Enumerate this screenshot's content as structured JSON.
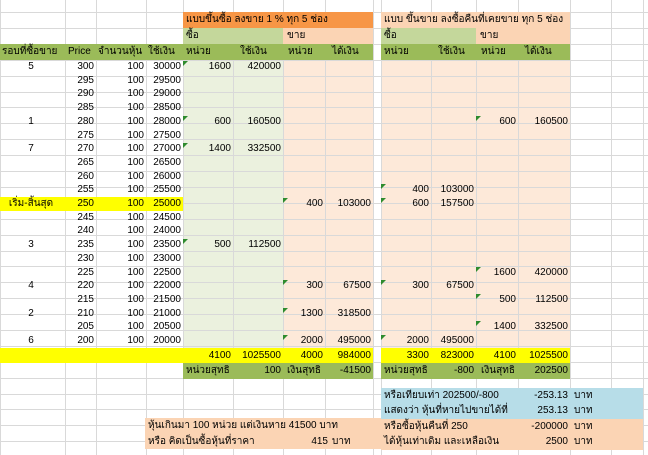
{
  "colors": {
    "orange": "#f79646",
    "peach": "#fbd4b4",
    "green_header": "#9bbb59",
    "light_green": "#ebf1de",
    "light_peach": "#fde9d9",
    "yellow": "#ffff00",
    "light_blue": "#b7dde8",
    "grid": "#d9d9d9"
  },
  "left_title": "แบบขึ้นซื้อ ลงขาย 1 % ทุก 5 ช่อง",
  "right_title": "แบบ ขึ้นขาย ลงซื้อคืนที่เคยขาย ทุก 5 ช่อง",
  "sub": {
    "buy": "ซื้อ",
    "sell": "ขาย"
  },
  "headers": {
    "round": "รอบที่ซื้อขาย",
    "price": "Price",
    "shares": "จำนวนหุ้น",
    "cost": "ใช้เงิน",
    "unit": "หน่วย",
    "spend": "ใช้เงิน",
    "get": "ได้เงิน"
  },
  "rows": [
    {
      "round": "5",
      "price": "300",
      "qty": "100",
      "cost": "30000",
      "lbu": "1600",
      "lbm": "420000",
      "lsu": "",
      "lsm": "",
      "rbu": "",
      "rbm": "",
      "rsu": "",
      "rsm": ""
    },
    {
      "round": "",
      "price": "295",
      "qty": "100",
      "cost": "29500",
      "lbu": "",
      "lbm": "",
      "lsu": "",
      "lsm": "",
      "rbu": "",
      "rbm": "",
      "rsu": "",
      "rsm": ""
    },
    {
      "round": "",
      "price": "290",
      "qty": "100",
      "cost": "29000",
      "lbu": "",
      "lbm": "",
      "lsu": "",
      "lsm": "",
      "rbu": "",
      "rbm": "",
      "rsu": "",
      "rsm": ""
    },
    {
      "round": "",
      "price": "285",
      "qty": "100",
      "cost": "28500",
      "lbu": "",
      "lbm": "",
      "lsu": "",
      "lsm": "",
      "rbu": "",
      "rbm": "",
      "rsu": "",
      "rsm": ""
    },
    {
      "round": "1",
      "price": "280",
      "qty": "100",
      "cost": "28000",
      "lbu": "600",
      "lbm": "160500",
      "lsu": "",
      "lsm": "",
      "rbu": "",
      "rbm": "",
      "rsu": "600",
      "rsm": "160500"
    },
    {
      "round": "",
      "price": "275",
      "qty": "100",
      "cost": "27500",
      "lbu": "",
      "lbm": "",
      "lsu": "",
      "lsm": "",
      "rbu": "",
      "rbm": "",
      "rsu": "",
      "rsm": ""
    },
    {
      "round": "7",
      "price": "270",
      "qty": "100",
      "cost": "27000",
      "lbu": "1400",
      "lbm": "332500",
      "lsu": "",
      "lsm": "",
      "rbu": "",
      "rbm": "",
      "rsu": "",
      "rsm": ""
    },
    {
      "round": "",
      "price": "265",
      "qty": "100",
      "cost": "26500",
      "lbu": "",
      "lbm": "",
      "lsu": "",
      "lsm": "",
      "rbu": "",
      "rbm": "",
      "rsu": "",
      "rsm": ""
    },
    {
      "round": "",
      "price": "260",
      "qty": "100",
      "cost": "26000",
      "lbu": "",
      "lbm": "",
      "lsu": "",
      "lsm": "",
      "rbu": "",
      "rbm": "",
      "rsu": "",
      "rsm": ""
    },
    {
      "round": "",
      "price": "255",
      "qty": "100",
      "cost": "25500",
      "lbu": "",
      "lbm": "",
      "lsu": "",
      "lsm": "",
      "rbu": "400",
      "rbm": "103000",
      "rsu": "",
      "rsm": ""
    },
    {
      "round": "เริ่ม-สิ้นสุด",
      "price": "250",
      "qty": "100",
      "cost": "25000",
      "lbu": "",
      "lbm": "",
      "lsu": "400",
      "lsm": "103000",
      "rbu": "600",
      "rbm": "157500",
      "rsu": "",
      "rsm": ""
    },
    {
      "round": "",
      "price": "245",
      "qty": "100",
      "cost": "24500",
      "lbu": "",
      "lbm": "",
      "lsu": "",
      "lsm": "",
      "rbu": "",
      "rbm": "",
      "rsu": "",
      "rsm": ""
    },
    {
      "round": "",
      "price": "240",
      "qty": "100",
      "cost": "24000",
      "lbu": "",
      "lbm": "",
      "lsu": "",
      "lsm": "",
      "rbu": "",
      "rbm": "",
      "rsu": "",
      "rsm": ""
    },
    {
      "round": "3",
      "price": "235",
      "qty": "100",
      "cost": "23500",
      "lbu": "500",
      "lbm": "112500",
      "lsu": "",
      "lsm": "",
      "rbu": "",
      "rbm": "",
      "rsu": "",
      "rsm": ""
    },
    {
      "round": "",
      "price": "230",
      "qty": "100",
      "cost": "23000",
      "lbu": "",
      "lbm": "",
      "lsu": "",
      "lsm": "",
      "rbu": "",
      "rbm": "",
      "rsu": "",
      "rsm": ""
    },
    {
      "round": "",
      "price": "225",
      "qty": "100",
      "cost": "22500",
      "lbu": "",
      "lbm": "",
      "lsu": "",
      "lsm": "",
      "rbu": "",
      "rbm": "",
      "rsu": "1600",
      "rsm": "420000"
    },
    {
      "round": "4",
      "price": "220",
      "qty": "100",
      "cost": "22000",
      "lbu": "",
      "lbm": "",
      "lsu": "300",
      "lsm": "67500",
      "rbu": "300",
      "rbm": "67500",
      "rsu": "",
      "rsm": ""
    },
    {
      "round": "",
      "price": "215",
      "qty": "100",
      "cost": "21500",
      "lbu": "",
      "lbm": "",
      "lsu": "",
      "lsm": "",
      "rbu": "",
      "rbm": "",
      "rsu": "500",
      "rsm": "112500"
    },
    {
      "round": "2",
      "price": "210",
      "qty": "100",
      "cost": "21000",
      "lbu": "",
      "lbm": "",
      "lsu": "1300",
      "lsm": "318500",
      "rbu": "",
      "rbm": "",
      "rsu": "",
      "rsm": ""
    },
    {
      "round": "",
      "price": "205",
      "qty": "100",
      "cost": "20500",
      "lbu": "",
      "lbm": "",
      "lsu": "",
      "lsm": "",
      "rbu": "",
      "rbm": "",
      "rsu": "1400",
      "rsm": "332500"
    },
    {
      "round": "6",
      "price": "200",
      "qty": "100",
      "cost": "20000",
      "lbu": "",
      "lbm": "",
      "lsu": "2000",
      "lsm": "495000",
      "rbu": "2000",
      "rbm": "495000",
      "rsu": "",
      "rsm": ""
    }
  ],
  "totals": {
    "lbu": "4100",
    "lbm": "1025500",
    "lsu": "4000",
    "lsm": "984000",
    "rbu": "3300",
    "rbm": "823000",
    "rsu": "4100",
    "rsm": "1025500"
  },
  "net": {
    "l_unit_label": "หน่วยสุทธิ",
    "l_unit_val": "100",
    "l_money_label": "เงินสุทธิ",
    "l_money_val": "-41500",
    "r_unit_label": "หน่วยสุทธิ",
    "r_unit_val": "-800",
    "r_money_label": "เงินสุทธิ",
    "r_money_val": "202500"
  },
  "notes_left": [
    {
      "text": "หุ้นเกินมา 100 หน่วย แต่เงินหาย 41500 บาท",
      "val": "",
      "unit": ""
    },
    {
      "text": "หรือ คิดเป็นซื้อหุ้นที่ราคา",
      "val": "415",
      "unit": "บาท"
    }
  ],
  "notes_right": [
    {
      "text": "หรือเทียบเท่า 202500/-800",
      "val": "-253.13",
      "unit": "บาท"
    },
    {
      "text": "แสดงว่า หุ้นที่หายไปขายได้ที่",
      "val": "253.13",
      "unit": "บาท"
    },
    {
      "text": "หรือซื้อหุ้นคืนที่ 250",
      "val": "-200000",
      "unit": "บาท"
    },
    {
      "text": "ได้หุ้นเท่าเดิม และเหลือเงิน",
      "val": "2500",
      "unit": "บาท"
    }
  ]
}
